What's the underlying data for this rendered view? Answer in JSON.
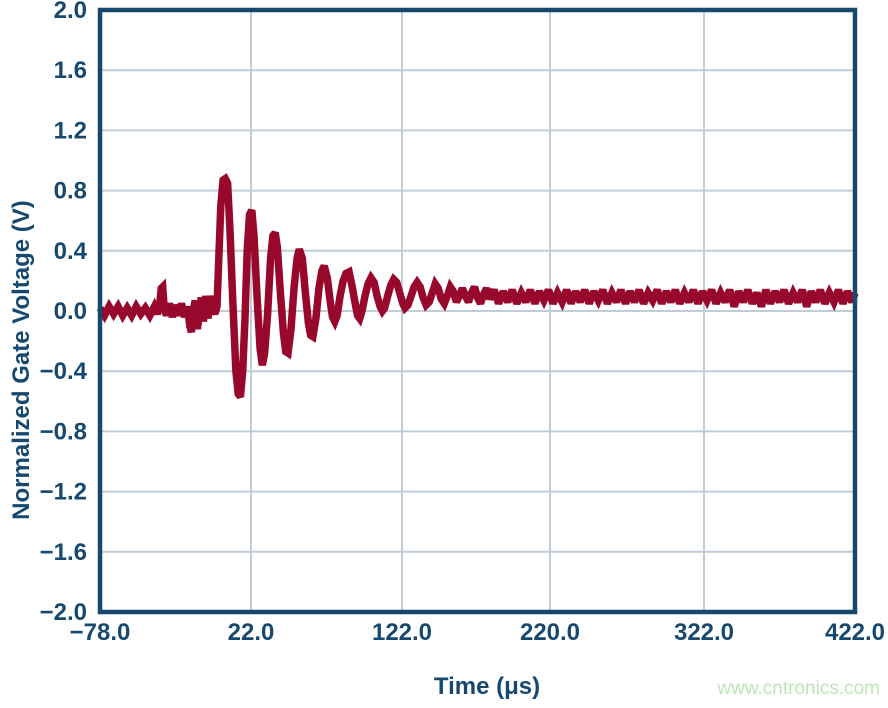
{
  "watermark": {
    "text": "www.cntronics.com",
    "color": "#bee5b8"
  },
  "chart_data": {
    "type": "line",
    "title": "",
    "xlabel": "Time (μs)",
    "ylabel": "Normalized Gate Voltage (V)",
    "xlim": [
      -78,
      422
    ],
    "ylim": [
      -2.0,
      2.0
    ],
    "grid": true,
    "legend": null,
    "x_tick_values": [
      -78,
      22,
      122,
      220,
      322,
      422
    ],
    "x_tick_labels": [
      "−78.0",
      "22.0",
      "122.0",
      "220.0",
      "322.0",
      "422.0"
    ],
    "y_tick_values": [
      2.0,
      1.6,
      1.2,
      0.8,
      0.4,
      0.0,
      -0.4,
      -0.8,
      -1.2,
      -1.6,
      -2.0
    ],
    "y_tick_labels": [
      "2.0",
      "1.6",
      "1.2",
      "0.8",
      "0.4",
      "0.0",
      "−0.4",
      "−0.8",
      "−1.2",
      "−1.6",
      "−2.0"
    ],
    "colors": {
      "trace": "#98082d",
      "axis": "#17496f",
      "grid": "#c0ccd8",
      "tick_text": "#17496f"
    },
    "annotations": {
      "first_peak_v": 0.88,
      "first_trough_v": -0.57,
      "ring_period_us": 17.5,
      "settled_level_v": 0.1
    },
    "series": [
      {
        "name": "gate_voltage",
        "points": [
          [
            -78,
            0.02
          ],
          [
            -75,
            -0.03
          ],
          [
            -72,
            0.03
          ],
          [
            -69,
            -0.02
          ],
          [
            -66,
            0.03
          ],
          [
            -63,
            -0.03
          ],
          [
            -60,
            0.02
          ],
          [
            -57,
            -0.03
          ],
          [
            -54,
            0.03
          ],
          [
            -51,
            -0.02
          ],
          [
            -48,
            0.02
          ],
          [
            -45,
            -0.03
          ],
          [
            -42,
            0.03
          ],
          [
            -40,
            -0.02
          ],
          [
            -38.5,
            0.03
          ],
          [
            -37.5,
            0.15
          ],
          [
            -36.5,
            0.16
          ],
          [
            -35.5,
            0.02
          ],
          [
            -34,
            -0.03
          ],
          [
            -32,
            0.05
          ],
          [
            -30,
            -0.04
          ],
          [
            -28,
            0.04
          ],
          [
            -26,
            -0.03
          ],
          [
            -24,
            0.05
          ],
          [
            -22,
            -0.04
          ],
          [
            -20,
            0.03
          ],
          [
            -18.5,
            -0.1
          ],
          [
            -17.5,
            -0.14
          ],
          [
            -16.5,
            -0.02
          ],
          [
            -15,
            0.07
          ],
          [
            -13.5,
            -0.12
          ],
          [
            -12.5,
            -0.04
          ],
          [
            -11,
            0.09
          ],
          [
            -9.5,
            -0.07
          ],
          [
            -8,
            0.1
          ],
          [
            -6.5,
            -0.05
          ],
          [
            -5,
            0.1
          ],
          [
            -3.5,
            0.02
          ],
          [
            -2,
            -0.02
          ],
          [
            -0.5,
            0.03
          ],
          [
            0.5,
            0.3
          ],
          [
            2,
            0.7
          ],
          [
            3.5,
            0.87
          ],
          [
            5,
            0.88
          ],
          [
            6.5,
            0.85
          ],
          [
            8,
            0.55
          ],
          [
            10,
            0.05
          ],
          [
            12,
            -0.4
          ],
          [
            13.5,
            -0.55
          ],
          [
            15,
            -0.57
          ],
          [
            16.5,
            -0.4
          ],
          [
            18,
            -0.05
          ],
          [
            19.5,
            0.4
          ],
          [
            21,
            0.64
          ],
          [
            22.5,
            0.67
          ],
          [
            24,
            0.5
          ],
          [
            26,
            0.1
          ],
          [
            28,
            -0.25
          ],
          [
            29.5,
            -0.36
          ],
          [
            31,
            -0.28
          ],
          [
            33,
            -0.02
          ],
          [
            35,
            0.35
          ],
          [
            36.5,
            0.5
          ],
          [
            38,
            0.52
          ],
          [
            39.5,
            0.42
          ],
          [
            41.5,
            0.12
          ],
          [
            43.5,
            -0.15
          ],
          [
            45,
            -0.27
          ],
          [
            46.5,
            -0.28
          ],
          [
            48.5,
            -0.12
          ],
          [
            50.5,
            0.15
          ],
          [
            52.5,
            0.35
          ],
          [
            54,
            0.41
          ],
          [
            56,
            0.35
          ],
          [
            58,
            0.12
          ],
          [
            60,
            -0.08
          ],
          [
            61.5,
            -0.16
          ],
          [
            63,
            -0.17
          ],
          [
            65,
            -0.05
          ],
          [
            67,
            0.15
          ],
          [
            69,
            0.27
          ],
          [
            70.5,
            0.3
          ],
          [
            72.5,
            0.22
          ],
          [
            74.5,
            0.06
          ],
          [
            76,
            -0.04
          ],
          [
            77.5,
            -0.07
          ],
          [
            79,
            -0.03
          ],
          [
            81,
            0.1
          ],
          [
            83,
            0.2
          ],
          [
            85,
            0.25
          ],
          [
            87,
            0.26
          ],
          [
            89,
            0.16
          ],
          [
            91,
            0.05
          ],
          [
            92.5,
            -0.03
          ],
          [
            94,
            -0.05
          ],
          [
            95.5,
            0
          ],
          [
            97.5,
            0.1
          ],
          [
            99.5,
            0.18
          ],
          [
            101.5,
            0.22
          ],
          [
            103.5,
            0.19
          ],
          [
            105.5,
            0.1
          ],
          [
            107.5,
            0.03
          ],
          [
            109,
            0
          ],
          [
            110.5,
            0.02
          ],
          [
            112.5,
            0.1
          ],
          [
            114.5,
            0.17
          ],
          [
            116.5,
            0.21
          ],
          [
            118.5,
            0.19
          ],
          [
            120.5,
            0.12
          ],
          [
            122.5,
            0.05
          ],
          [
            124,
            0.02
          ],
          [
            126,
            0.04
          ],
          [
            128,
            0.1
          ],
          [
            130,
            0.16
          ],
          [
            132,
            0.19
          ],
          [
            134,
            0.16
          ],
          [
            136,
            0.09
          ],
          [
            138,
            0.04
          ],
          [
            140,
            0.06
          ],
          [
            142,
            0.12
          ],
          [
            144,
            0.18
          ],
          [
            146,
            0.15
          ],
          [
            148,
            0.08
          ],
          [
            150,
            0.05
          ],
          [
            152,
            0.1
          ],
          [
            154,
            0.16
          ],
          [
            156,
            0.13
          ],
          [
            158,
            0.06
          ],
          [
            160,
            0.1
          ],
          [
            162,
            0.15
          ],
          [
            164,
            0.1
          ],
          [
            166,
            0.06
          ],
          [
            168,
            0.12
          ],
          [
            170,
            0.16
          ],
          [
            172,
            0.09
          ],
          [
            174,
            0.05
          ],
          [
            176,
            0.11
          ],
          [
            178,
            0.15
          ],
          [
            180,
            0.08
          ],
          [
            183,
            0.14
          ],
          [
            186,
            0.05
          ],
          [
            189,
            0.13
          ],
          [
            192,
            0.06
          ],
          [
            195,
            0.14
          ],
          [
            198,
            0.05
          ],
          [
            201,
            0.12
          ],
          [
            204,
            0.06
          ],
          [
            207,
            0.14
          ],
          [
            210,
            0.05
          ],
          [
            213,
            0.13
          ],
          [
            216,
            0.07
          ],
          [
            219,
            0.14
          ],
          [
            222,
            0.05
          ],
          [
            225,
            0.12
          ],
          [
            228,
            0.06
          ],
          [
            231,
            0.14
          ],
          [
            234,
            0.05
          ],
          [
            237,
            0.13
          ],
          [
            240,
            0.06
          ],
          [
            243,
            0.14
          ],
          [
            246,
            0.05
          ],
          [
            249,
            0.13
          ],
          [
            252,
            0.07
          ],
          [
            255,
            0.14
          ],
          [
            258,
            0.05
          ],
          [
            261,
            0.12
          ],
          [
            264,
            0.06
          ],
          [
            267,
            0.14
          ],
          [
            270,
            0.05
          ],
          [
            273,
            0.13
          ],
          [
            276,
            0.06
          ],
          [
            279,
            0.14
          ],
          [
            282,
            0.05
          ],
          [
            285,
            0.12
          ],
          [
            288,
            0.07
          ],
          [
            291,
            0.14
          ],
          [
            294,
            0.05
          ],
          [
            297,
            0.13
          ],
          [
            300,
            0.06
          ],
          [
            303,
            0.14
          ],
          [
            306,
            0.05
          ],
          [
            309,
            0.12
          ],
          [
            312,
            0.06
          ],
          [
            315,
            0.14
          ],
          [
            318,
            0.05
          ],
          [
            321,
            0.13
          ],
          [
            324,
            0.07
          ],
          [
            327,
            0.14
          ],
          [
            330,
            0.05
          ],
          [
            333,
            0.12
          ],
          [
            336,
            0.06
          ],
          [
            339,
            0.14
          ],
          [
            342,
            0.03
          ],
          [
            345,
            0.13
          ],
          [
            348,
            0.06
          ],
          [
            351,
            0.14
          ],
          [
            354,
            0.05
          ],
          [
            357,
            0.12
          ],
          [
            360,
            0.03
          ],
          [
            363,
            0.14
          ],
          [
            366,
            0.05
          ],
          [
            369,
            0.13
          ],
          [
            372,
            0.06
          ],
          [
            375,
            0.14
          ],
          [
            378,
            0.05
          ],
          [
            381,
            0.12
          ],
          [
            384,
            0.06
          ],
          [
            387,
            0.14
          ],
          [
            390,
            0.03
          ],
          [
            393,
            0.13
          ],
          [
            396,
            0.06
          ],
          [
            399,
            0.14
          ],
          [
            402,
            0.05
          ],
          [
            405,
            0.12
          ],
          [
            408,
            0.06
          ],
          [
            411,
            0.14
          ],
          [
            414,
            0.05
          ],
          [
            417,
            0.13
          ],
          [
            420,
            0.06
          ],
          [
            422,
            0.12
          ]
        ]
      }
    ]
  }
}
